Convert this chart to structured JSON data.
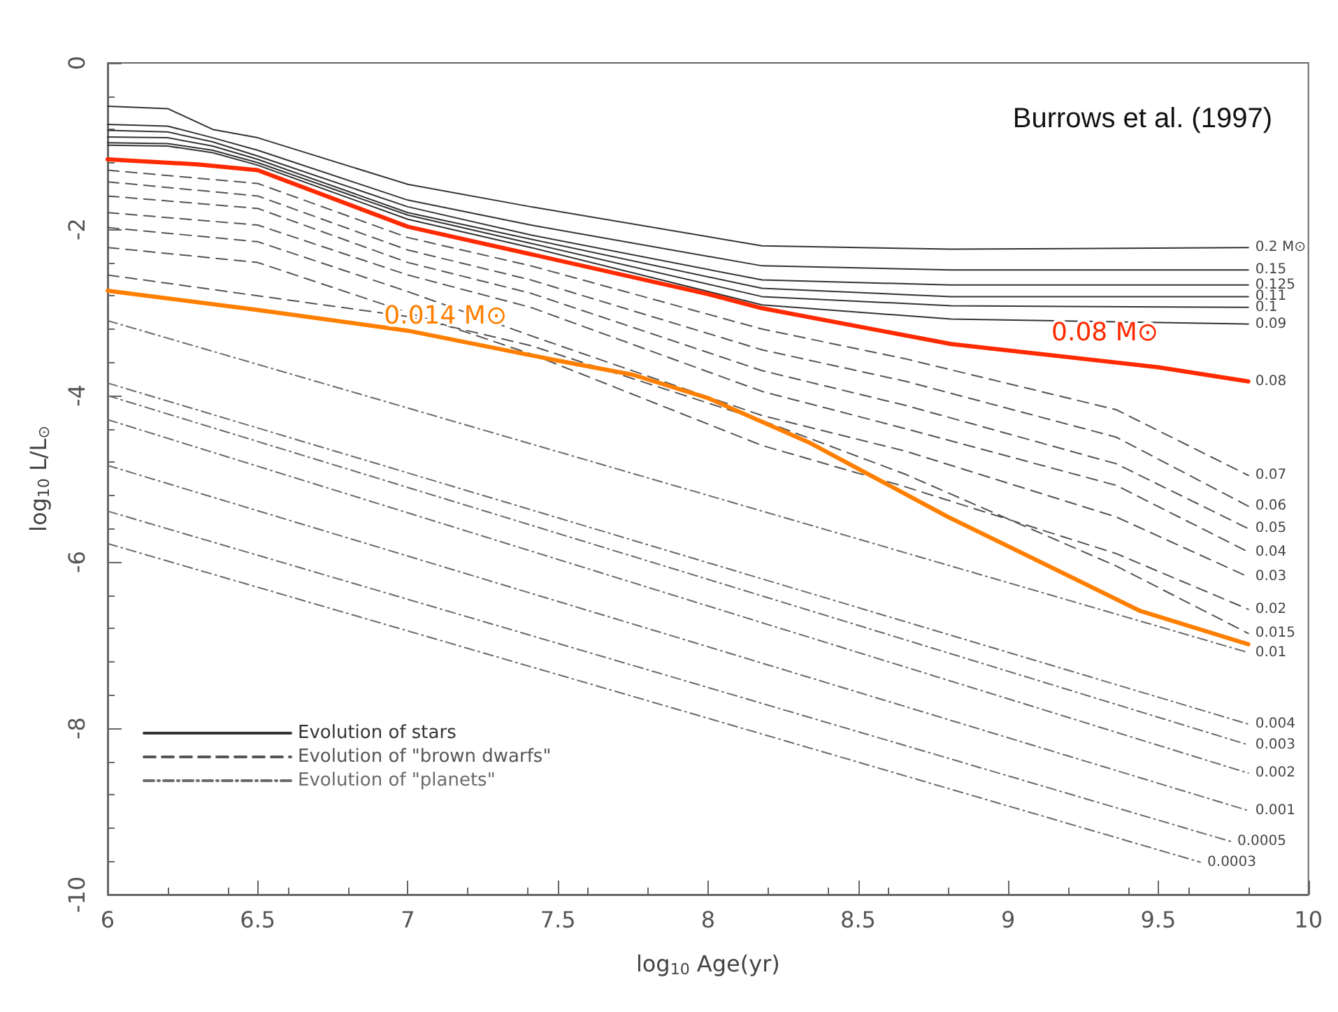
{
  "chart_data": {
    "type": "line",
    "xlabel": "log$_{10}$ Age(yr)",
    "ylabel": "log$_{10}$ L/L$_{⊙}$",
    "xlim": [
      6,
      10
    ],
    "xticks": [
      6,
      6.5,
      7,
      7.5,
      8,
      8.5,
      9,
      9.5,
      10
    ],
    "ylim": [
      -10,
      0
    ],
    "yticks": [
      -10,
      -8,
      -6,
      -4,
      -2,
      0
    ],
    "grid": false,
    "legend": "bottom left",
    "marker": "none",
    "series": [
      {
        "name": "Evolution of stars",
        "color": "#333333",
        "line_style": "solid",
        "x": [
          6,
          6.2,
          6.35,
          6.5,
          7,
          7.41,
          8.18,
          8.81,
          9.8,
          null,
          6,
          6.2,
          6.35,
          6.5,
          7,
          7.41,
          8.18,
          8.81,
          9.8,
          null,
          6,
          6.2,
          6.35,
          6.5,
          7,
          7.41,
          8.18,
          8.81,
          9.8,
          null,
          6,
          6.2,
          6.35,
          6.5,
          7,
          7.41,
          8.18,
          8.81,
          9.8,
          null,
          6,
          6.2,
          6.35,
          6.5,
          7,
          7.41,
          8.18,
          8.81,
          9.8,
          null,
          6,
          6.2,
          6.35,
          6.5,
          7,
          7.41,
          8.18,
          8.81,
          9.8
        ],
        "values": [
          -0.52,
          -0.55,
          -0.8,
          -0.9,
          -1.46,
          -1.73,
          -2.2,
          -2.24,
          -2.22,
          null,
          -0.74,
          -0.76,
          -0.9,
          -1.05,
          -1.65,
          -1.95,
          -2.44,
          -2.49,
          -2.49,
          null,
          -0.81,
          -0.83,
          -0.95,
          -1.12,
          -1.73,
          -2.07,
          -2.61,
          -2.67,
          -2.67,
          null,
          -0.89,
          -0.9,
          -1.0,
          -1.16,
          -1.8,
          -2.12,
          -2.71,
          -2.81,
          -2.81,
          null,
          -0.96,
          -0.97,
          -1.05,
          -1.2,
          -1.83,
          -2.17,
          -2.81,
          -2.92,
          -2.94,
          null,
          -0.99,
          -1.0,
          -1.08,
          -1.23,
          -1.88,
          -2.22,
          -2.91,
          -3.08,
          -3.14
        ]
      },
      {
        "name": "Evolution of \"brown dwarfs\"",
        "color": "#555555",
        "line_style": "dashed",
        "x": [
          6,
          6.5,
          7,
          7.41,
          8.18,
          8.66,
          9.36,
          9.8,
          null,
          6,
          6.5,
          7,
          7.41,
          8.18,
          8.66,
          9.36,
          9.8,
          null,
          6,
          6.5,
          7,
          7.41,
          8.18,
          8.66,
          9.36,
          9.8,
          null,
          6,
          6.5,
          7,
          7.41,
          8.18,
          8.66,
          9.36,
          9.8,
          null,
          6,
          6.5,
          7,
          7.41,
          8.18,
          8.66,
          9.36,
          9.8,
          null,
          6,
          6.5,
          7,
          7.41,
          8.18,
          8.66,
          9.36,
          9.8,
          null,
          6,
          6.5,
          7,
          7.41,
          8.18,
          8.66,
          9.36,
          9.8
        ],
        "values": [
          -1.29,
          -1.45,
          -2.1,
          -2.44,
          -3.2,
          -3.56,
          -4.17,
          -4.96,
          null,
          -1.43,
          -1.6,
          -2.25,
          -2.61,
          -3.45,
          -3.83,
          -4.5,
          -5.33,
          null,
          -1.6,
          -1.75,
          -2.4,
          -2.77,
          -3.7,
          -4.12,
          -4.82,
          -5.6,
          null,
          -1.8,
          -1.95,
          -2.55,
          -2.94,
          -3.95,
          -4.4,
          -5.08,
          -5.88,
          null,
          -1.98,
          -2.15,
          -2.75,
          -3.28,
          -4.24,
          -4.67,
          -5.46,
          -6.18,
          null,
          -2.22,
          -2.4,
          -3.0,
          -3.5,
          -4.6,
          -5.1,
          -5.9,
          -6.57,
          null,
          -2.55,
          -2.8,
          -3.05,
          -3.4,
          -4.3,
          -4.95,
          -6.05,
          -6.86
        ]
      },
      {
        "name": "Evolution of \"planets\"",
        "color": "#6a6a6a",
        "line_style": "dashdot",
        "x": [
          6,
          8,
          9.8,
          null,
          6,
          8,
          9.8,
          null,
          6,
          8,
          9.8,
          null,
          6,
          8,
          9.8,
          null,
          6,
          8,
          9.8,
          null,
          6,
          8,
          9.74,
          null,
          6,
          8,
          9.64
        ],
        "values": [
          -3.1,
          -5.2,
          -7.09,
          null,
          -3.85,
          -6.01,
          -7.95,
          null,
          -4.0,
          -6.21,
          -8.2,
          null,
          -4.29,
          -6.53,
          -8.54,
          null,
          -4.84,
          -7.02,
          -8.99,
          null,
          -5.39,
          -7.51,
          -9.36,
          null,
          -5.78,
          -7.88,
          -9.61
        ]
      },
      {
        "color": "#ff2a00",
        "x": [
          6,
          6.3,
          6.5,
          7,
          7.41,
          8,
          8.18,
          8.81,
          9.5,
          9.8
        ],
        "values": [
          -1.16,
          -1.22,
          -1.29,
          -1.97,
          -2.3,
          -2.78,
          -2.95,
          -3.38,
          -3.66,
          -3.83
        ]
      },
      {
        "color": "#ff7f00",
        "x": [
          6,
          6.5,
          7,
          7.5,
          7.75,
          8,
          8.34,
          8.8,
          9.09,
          9.44,
          9.8
        ],
        "values": [
          -2.74,
          -2.97,
          -3.22,
          -3.58,
          -3.75,
          -4.03,
          -4.57,
          -5.46,
          -5.97,
          -6.59,
          -6.99
        ]
      }
    ],
    "annotations": [
      "Burrows et al. (1997)",
      {
        "text": "0.08 M⊙",
        "x": 9.5,
        "y": -3.66
      },
      {
        "text": "0.014 M⊙",
        "x": 7.33,
        "y": -3.46
      },
      {
        "text": "0.2 M⊙",
        "x": 9.8,
        "y": -2.22
      },
      {
        "text": "0.15",
        "x": 9.8,
        "y": -2.49
      },
      {
        "text": "0.125",
        "x": 9.8,
        "y": -2.67
      },
      {
        "text": "0.11",
        "x": 9.8,
        "y": -2.81
      },
      {
        "text": "0.1",
        "x": 9.8,
        "y": -2.94
      },
      {
        "text": "0.09",
        "x": 9.8,
        "y": -3.14
      },
      {
        "text": "0.08",
        "x": 9.8,
        "y": -3.83
      },
      {
        "text": "0.07",
        "x": 9.8,
        "y": -4.96
      },
      {
        "text": "0.06",
        "x": 9.8,
        "y": -5.33
      },
      {
        "text": "0.05",
        "x": 9.8,
        "y": -5.6
      },
      {
        "text": "0.04",
        "x": 9.8,
        "y": -5.88
      },
      {
        "text": "0.03",
        "x": 9.8,
        "y": -6.18
      },
      {
        "text": "0.02",
        "x": 9.8,
        "y": -6.57
      },
      {
        "text": "0.015",
        "x": 9.8,
        "y": -6.86
      },
      {
        "text": "0.01",
        "x": 9.8,
        "y": -7.09
      },
      {
        "text": "0.004",
        "x": 9.8,
        "y": -7.95
      },
      {
        "text": "0.003",
        "x": 9.8,
        "y": -8.2
      },
      {
        "text": "0.002",
        "x": 9.8,
        "y": -8.54
      },
      {
        "text": "0.001",
        "x": 9.8,
        "y": -8.99
      },
      {
        "text": "0.0005",
        "x": 9.74,
        "y": -9.36
      },
      {
        "text": "0.0003",
        "x": 9.64,
        "y": -9.61
      }
    ]
  }
}
